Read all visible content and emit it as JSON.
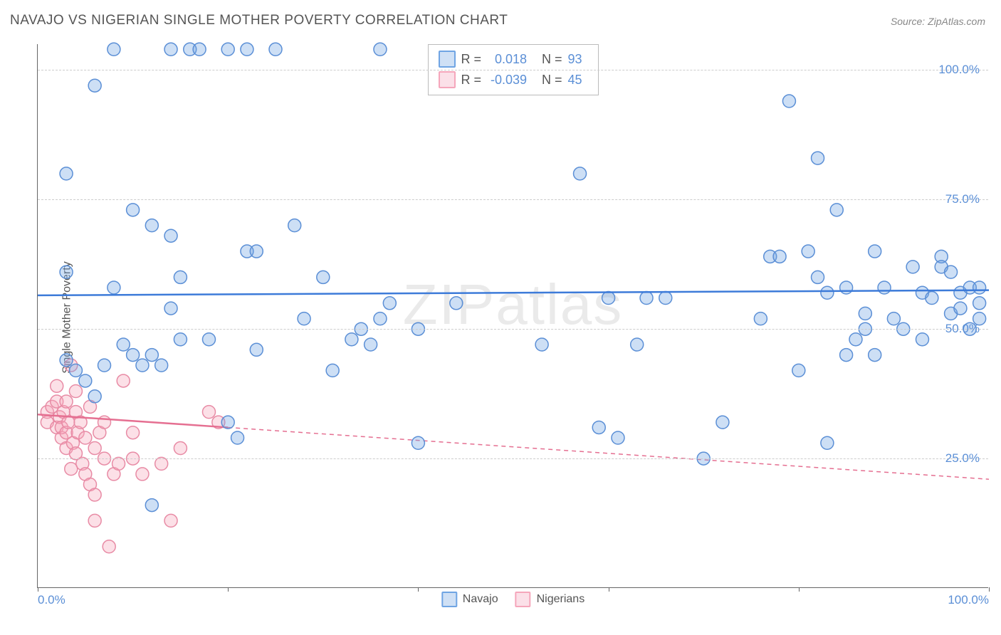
{
  "title": "NAVAJO VS NIGERIAN SINGLE MOTHER POVERTY CORRELATION CHART",
  "source": "Source: ZipAtlas.com",
  "watermark": "ZIPatlas",
  "y_axis_label": "Single Mother Poverty",
  "chart": {
    "type": "scatter",
    "background_color": "#ffffff",
    "grid_color": "#cccccc",
    "axis_color": "#666666",
    "tick_label_color": "#5b8fd6",
    "xlim": [
      0,
      100
    ],
    "ylim": [
      0,
      105
    ],
    "y_gridlines": [
      25,
      50,
      75,
      100
    ],
    "y_tick_labels": [
      "25.0%",
      "50.0%",
      "75.0%",
      "100.0%"
    ],
    "x_ticks": [
      0,
      20,
      40,
      60,
      80,
      100
    ],
    "x_tick_labels_shown": {
      "0": "0.0%",
      "100": "100.0%"
    },
    "marker_radius": 9,
    "marker_fill_opacity": 0.35,
    "marker_stroke_width": 1.5,
    "trend_line_width": 2.5,
    "trend_dash": "6,5"
  },
  "series": {
    "navajo": {
      "label": "Navajo",
      "color": "#6fa4e3",
      "stroke": "#5b8fd6",
      "trend_color": "#3d7bd9",
      "R": "0.018",
      "N": "93",
      "trend": {
        "x1": 0,
        "y1": 56.5,
        "x2": 100,
        "y2": 57.5,
        "solid_until": 100
      },
      "points": [
        [
          3,
          80
        ],
        [
          6,
          97
        ],
        [
          8,
          104
        ],
        [
          14,
          104
        ],
        [
          16,
          104
        ],
        [
          17,
          104
        ],
        [
          20,
          104
        ],
        [
          22,
          104
        ],
        [
          25,
          104
        ],
        [
          10,
          73
        ],
        [
          12,
          70
        ],
        [
          14,
          68
        ],
        [
          3,
          61
        ],
        [
          3,
          44
        ],
        [
          4,
          42
        ],
        [
          5,
          40
        ],
        [
          6,
          37
        ],
        [
          7,
          43
        ],
        [
          8,
          58
        ],
        [
          9,
          47
        ],
        [
          10,
          45
        ],
        [
          11,
          43
        ],
        [
          12,
          45
        ],
        [
          13,
          43
        ],
        [
          14,
          54
        ],
        [
          15,
          60
        ],
        [
          15,
          48
        ],
        [
          18,
          48
        ],
        [
          22,
          65
        ],
        [
          23,
          65
        ],
        [
          23,
          46
        ],
        [
          27,
          70
        ],
        [
          28,
          52
        ],
        [
          30,
          60
        ],
        [
          31,
          42
        ],
        [
          33,
          48
        ],
        [
          34,
          50
        ],
        [
          35,
          47
        ],
        [
          36,
          52
        ],
        [
          37,
          55
        ],
        [
          40,
          28
        ],
        [
          40,
          50
        ],
        [
          44,
          55
        ],
        [
          12,
          16
        ],
        [
          20,
          32
        ],
        [
          21,
          29
        ],
        [
          53,
          47
        ],
        [
          57,
          80
        ],
        [
          59,
          31
        ],
        [
          60,
          56
        ],
        [
          61,
          29
        ],
        [
          63,
          47
        ],
        [
          64,
          56
        ],
        [
          66,
          56
        ],
        [
          70,
          25
        ],
        [
          72,
          32
        ],
        [
          76,
          52
        ],
        [
          77,
          64
        ],
        [
          78,
          64
        ],
        [
          79,
          94
        ],
        [
          80,
          42
        ],
        [
          81,
          65
        ],
        [
          82,
          60
        ],
        [
          82,
          83
        ],
        [
          83,
          57
        ],
        [
          83,
          28
        ],
        [
          84,
          73
        ],
        [
          85,
          45
        ],
        [
          85,
          58
        ],
        [
          86,
          48
        ],
        [
          87,
          53
        ],
        [
          87,
          50
        ],
        [
          88,
          65
        ],
        [
          88,
          45
        ],
        [
          89,
          58
        ],
        [
          90,
          52
        ],
        [
          91,
          50
        ],
        [
          92,
          62
        ],
        [
          93,
          57
        ],
        [
          93,
          48
        ],
        [
          94,
          56
        ],
        [
          95,
          64
        ],
        [
          95,
          62
        ],
        [
          96,
          53
        ],
        [
          96,
          61
        ],
        [
          97,
          57
        ],
        [
          97,
          54
        ],
        [
          98,
          58
        ],
        [
          98,
          50
        ],
        [
          99,
          58
        ],
        [
          99,
          55
        ],
        [
          99,
          52
        ],
        [
          36,
          104
        ]
      ]
    },
    "nigerians": {
      "label": "Nigerians",
      "color": "#f5a6bb",
      "stroke": "#e88ba5",
      "trend_color": "#e56f91",
      "R": "-0.039",
      "N": "45",
      "trend": {
        "x1": 0,
        "y1": 33.5,
        "x2": 100,
        "y2": 21,
        "solid_until": 20
      },
      "points": [
        [
          1,
          34
        ],
        [
          1,
          32
        ],
        [
          1.5,
          35
        ],
        [
          2,
          31
        ],
        [
          2,
          39
        ],
        [
          2,
          36
        ],
        [
          2.3,
          33
        ],
        [
          2.5,
          29
        ],
        [
          2.5,
          31
        ],
        [
          2.7,
          34
        ],
        [
          3,
          30
        ],
        [
          3,
          27
        ],
        [
          3,
          36
        ],
        [
          3.2,
          32
        ],
        [
          3.5,
          23
        ],
        [
          3.5,
          43
        ],
        [
          3.7,
          28
        ],
        [
          4,
          34
        ],
        [
          4,
          38
        ],
        [
          4,
          26
        ],
        [
          4.2,
          30
        ],
        [
          4.5,
          32
        ],
        [
          4.7,
          24
        ],
        [
          5,
          22
        ],
        [
          5,
          29
        ],
        [
          5.5,
          35
        ],
        [
          5.5,
          20
        ],
        [
          6,
          18
        ],
        [
          6,
          13
        ],
        [
          6,
          27
        ],
        [
          6.5,
          30
        ],
        [
          7,
          25
        ],
        [
          7,
          32
        ],
        [
          7.5,
          8
        ],
        [
          8,
          22
        ],
        [
          8.5,
          24
        ],
        [
          9,
          40
        ],
        [
          10,
          30
        ],
        [
          10,
          25
        ],
        [
          11,
          22
        ],
        [
          13,
          24
        ],
        [
          14,
          13
        ],
        [
          15,
          27
        ],
        [
          18,
          34
        ],
        [
          19,
          32
        ]
      ]
    }
  },
  "stats_box": {
    "rows": [
      {
        "swatch_fill": "#cfe0f5",
        "swatch_border": "#6fa4e3",
        "r_label": "R =",
        "r_val": "0.018",
        "n_label": "N =",
        "n_val": "93"
      },
      {
        "swatch_fill": "#fbe0e8",
        "swatch_border": "#f5a6bb",
        "r_label": "R =",
        "r_val": "-0.039",
        "n_label": "N =",
        "n_val": "45"
      }
    ]
  },
  "legend": [
    {
      "swatch_fill": "#cfe0f5",
      "swatch_border": "#6fa4e3",
      "label": "Navajo"
    },
    {
      "swatch_fill": "#fbe0e8",
      "swatch_border": "#f5a6bb",
      "label": "Nigerians"
    }
  ]
}
